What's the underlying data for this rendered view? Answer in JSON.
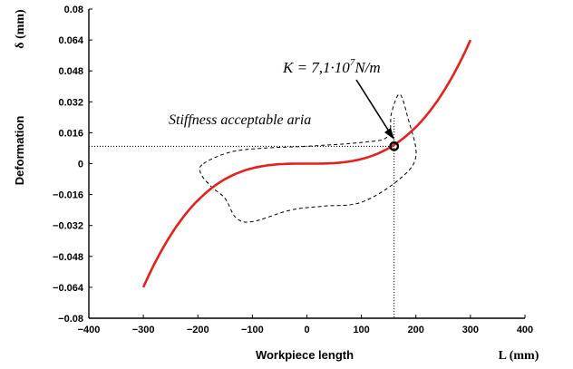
{
  "chart_data": {
    "type": "line",
    "xlabel": "Workpiece length",
    "xunit": "L (mm)",
    "ylabel": "Deformation",
    "yunit": "δ (mm)",
    "xlim": [
      -400,
      400
    ],
    "ylim": [
      -0.08,
      0.08
    ],
    "x_ticks": [
      "−400",
      "−300",
      "−200",
      "−100",
      "0",
      "100",
      "200",
      "300",
      "400"
    ],
    "y_ticks": [
      "0.08",
      "0.064",
      "0.048",
      "0.032",
      "0.016",
      "0",
      "−0.016",
      "−0.032",
      "−0.048",
      "−0.064",
      "−0.08"
    ],
    "grid": false,
    "series": [
      {
        "color": "#e8201c",
        "x": [
          -300,
          -250,
          -200,
          -150,
          -100,
          -50,
          0,
          50,
          100,
          150,
          200,
          250,
          300
        ],
        "y": [
          -0.064,
          -0.036,
          -0.0168,
          -0.0065,
          -0.0019,
          -0.0002,
          0.0,
          0.0002,
          0.0019,
          0.0065,
          0.0168,
          0.036,
          0.064
        ]
      }
    ],
    "highlight_point": {
      "x": 160,
      "y": 0.009
    },
    "region": {
      "style": "dashed",
      "points": [
        [
          -190,
          0.0
        ],
        [
          -140,
          0.006
        ],
        [
          -80,
          0.008
        ],
        [
          0,
          0.009
        ],
        [
          100,
          0.011
        ],
        [
          148,
          0.014
        ],
        [
          155,
          0.026
        ],
        [
          170,
          0.036
        ],
        [
          185,
          0.024
        ],
        [
          200,
          0.004
        ],
        [
          170,
          -0.008
        ],
        [
          100,
          -0.02
        ],
        [
          30,
          -0.022
        ],
        [
          -30,
          -0.024
        ],
        [
          -100,
          -0.03
        ],
        [
          -130,
          -0.028
        ],
        [
          -150,
          -0.018
        ],
        [
          -175,
          -0.012
        ],
        [
          -195,
          -0.005
        ]
      ]
    },
    "annotations": {
      "stiffness_label": "Stiffness acceptable aria",
      "k_label_main": "K = 7,1·10",
      "k_label_exp": "7",
      "k_label_unit": "N/m"
    }
  }
}
